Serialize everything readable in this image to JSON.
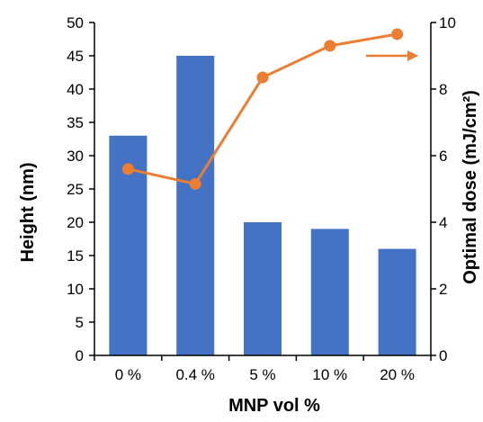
{
  "chart_data": {
    "type": "bar",
    "title": "",
    "categories": [
      "0 %",
      "0.4 %",
      "5 %",
      "10 %",
      "20 %"
    ],
    "xlabel": "MNP vol %",
    "series": [
      {
        "type": "bar",
        "axis": "left",
        "values": [
          33,
          45,
          20,
          19,
          16
        ],
        "color": "#4472C4"
      },
      {
        "type": "line",
        "axis": "right",
        "values": [
          5.6,
          5.15,
          8.35,
          9.3,
          9.65
        ],
        "color": "#ED7D31"
      }
    ],
    "y_left": {
      "label": "Height (nm)",
      "range": [
        0,
        50
      ],
      "ticks": [
        0,
        5,
        10,
        15,
        20,
        25,
        30,
        35,
        40,
        45,
        50
      ]
    },
    "y_right": {
      "label": "Optimal dose (mJ/cm²)",
      "range": [
        0,
        10
      ],
      "ticks": [
        0,
        2,
        4,
        6,
        8,
        10
      ]
    },
    "annotation": {
      "type": "arrow",
      "direction": "right",
      "points_to_axis": "right",
      "color": "#ED7D31"
    },
    "grid": false,
    "legend": "none"
  }
}
